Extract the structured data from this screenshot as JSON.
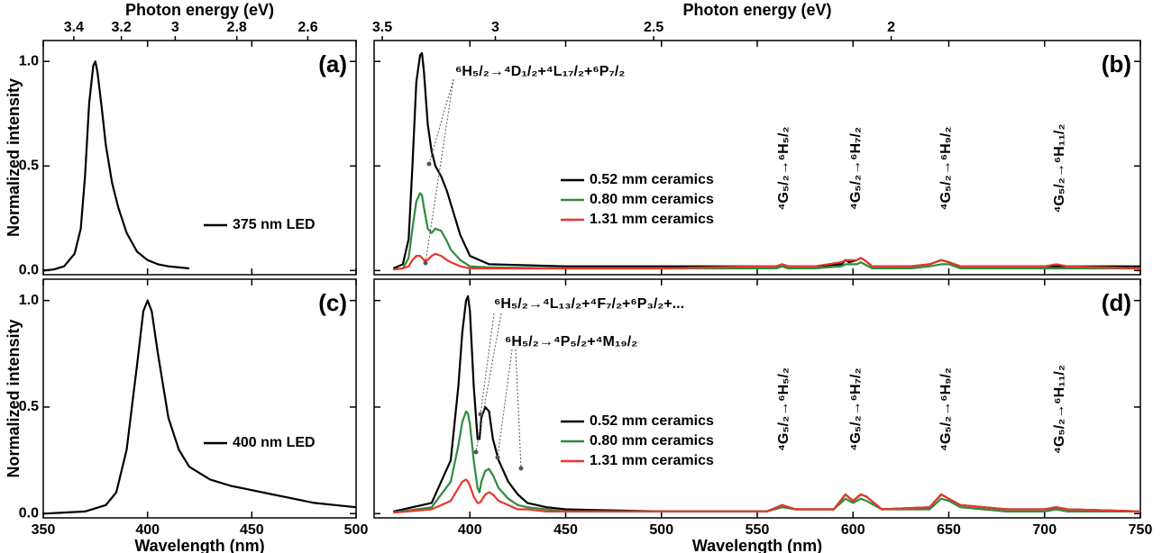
{
  "chart_data": [
    {
      "type": "line",
      "label": "(a)",
      "x2label": "Photon energy (eV)",
      "ylabel": "Normalized intensity",
      "xlim": [
        350,
        500
      ],
      "xticks": [
        350,
        400,
        450,
        500
      ],
      "x2ticks": [
        3.4,
        3.2,
        3,
        2.8,
        2.6
      ],
      "ylim": [
        -0.02,
        1.1
      ],
      "yticks": [
        {
          "value": 0,
          "label": "0.0"
        },
        {
          "value": 0.5,
          "label": "0.5"
        },
        {
          "value": 1,
          "label": "1.0"
        }
      ],
      "x": [
        350,
        355,
        360,
        365,
        368,
        370,
        372,
        374,
        375,
        376,
        378,
        380,
        383,
        386,
        390,
        395,
        400,
        405,
        410,
        415,
        420
      ],
      "series": [
        {
          "name": "375 nm LED",
          "color": "#000000",
          "values": [
            0.0,
            0.005,
            0.02,
            0.08,
            0.2,
            0.45,
            0.8,
            0.98,
            1.0,
            0.95,
            0.78,
            0.6,
            0.42,
            0.3,
            0.18,
            0.09,
            0.05,
            0.03,
            0.02,
            0.015,
            0.01
          ]
        }
      ]
    },
    {
      "type": "line",
      "label": "(b)",
      "x2label": "Photon energy (eV)",
      "xlim": [
        350,
        750
      ],
      "xticks": [
        400,
        450,
        500,
        550,
        600,
        650,
        700,
        750
      ],
      "x2ticks": [
        3.5,
        3,
        2.5,
        2
      ],
      "ylim": [
        -0.02,
        1.1
      ],
      "yticks": [
        0,
        0.5,
        1
      ],
      "annotations": [
        "⁶H₅/₂→⁴D₁/₂+⁴L₁₇/₂+⁶P₇/₂"
      ],
      "transitions": [
        "⁴G₅/₂→⁶H₅/₂",
        "⁴G₅/₂→⁶H₇/₂",
        "⁴G₅/₂→⁶H₉/₂",
        "⁴G₅/₂→⁶H₁₁/₂"
      ],
      "x": [
        360,
        365,
        368,
        370,
        372,
        374,
        375,
        376,
        378,
        380,
        382,
        385,
        388,
        390,
        395,
        400,
        410,
        450,
        500,
        550,
        560,
        563,
        566,
        580,
        594,
        596,
        598,
        602,
        604,
        606,
        610,
        630,
        640,
        646,
        650,
        656,
        670,
        700,
        706,
        712,
        750
      ],
      "series": [
        {
          "name": "0.52 mm ceramics",
          "color": "#000000",
          "values": [
            0.01,
            0.03,
            0.15,
            0.5,
            0.9,
            1.03,
            1.04,
            0.95,
            0.7,
            0.57,
            0.5,
            0.45,
            0.38,
            0.32,
            0.17,
            0.07,
            0.03,
            0.02,
            0.02,
            0.02,
            0.02,
            0.03,
            0.02,
            0.02,
            0.03,
            0.05,
            0.04,
            0.05,
            0.06,
            0.05,
            0.02,
            0.02,
            0.03,
            0.05,
            0.04,
            0.02,
            0.02,
            0.02,
            0.02,
            0.02,
            0.02
          ]
        },
        {
          "name": "0.80 mm ceramics",
          "color": "#2e8b3e",
          "values": [
            0.005,
            0.01,
            0.06,
            0.2,
            0.33,
            0.37,
            0.36,
            0.3,
            0.2,
            0.18,
            0.2,
            0.19,
            0.14,
            0.1,
            0.05,
            0.02,
            0.015,
            0.01,
            0.01,
            0.01,
            0.01,
            0.02,
            0.01,
            0.01,
            0.02,
            0.03,
            0.03,
            0.03,
            0.04,
            0.03,
            0.01,
            0.01,
            0.02,
            0.03,
            0.03,
            0.01,
            0.01,
            0.01,
            0.01,
            0.01,
            0.01
          ]
        },
        {
          "name": "1.31 mm ceramics",
          "color": "#e8372a",
          "values": [
            0.005,
            0.01,
            0.02,
            0.05,
            0.07,
            0.07,
            0.06,
            0.05,
            0.05,
            0.07,
            0.08,
            0.07,
            0.05,
            0.04,
            0.02,
            0.01,
            0.01,
            0.01,
            0.01,
            0.02,
            0.02,
            0.03,
            0.02,
            0.02,
            0.04,
            0.05,
            0.05,
            0.05,
            0.06,
            0.05,
            0.02,
            0.02,
            0.03,
            0.05,
            0.04,
            0.02,
            0.02,
            0.02,
            0.03,
            0.02,
            0.01
          ]
        }
      ]
    },
    {
      "type": "line",
      "label": "(c)",
      "xlabel": "Wavelength (nm)",
      "ylabel": "Normalized intensity",
      "xlim": [
        350,
        500
      ],
      "xticks": [
        350,
        400,
        450,
        500
      ],
      "x2ticks": [
        3.4,
        3.2,
        3,
        2.8,
        2.6
      ],
      "ylim": [
        -0.02,
        1.1
      ],
      "yticks": [
        {
          "value": 0,
          "label": "0.0"
        },
        {
          "value": 0.5,
          "label": "0.5"
        },
        {
          "value": 1,
          "label": "1.0"
        }
      ],
      "x": [
        350,
        360,
        370,
        380,
        385,
        390,
        395,
        398,
        400,
        402,
        405,
        410,
        415,
        420,
        430,
        440,
        450,
        460,
        470,
        480,
        490,
        500
      ],
      "series": [
        {
          "name": "400 nm LED",
          "color": "#000000",
          "values": [
            0,
            0.005,
            0.01,
            0.04,
            0.1,
            0.3,
            0.7,
            0.95,
            1.0,
            0.95,
            0.75,
            0.45,
            0.3,
            0.22,
            0.16,
            0.13,
            0.11,
            0.09,
            0.07,
            0.05,
            0.04,
            0.03
          ]
        }
      ]
    },
    {
      "type": "line",
      "label": "(d)",
      "xlabel": "Wavelength (nm)",
      "xlim": [
        350,
        750
      ],
      "xticks": [
        400,
        450,
        500,
        550,
        600,
        650,
        700,
        750
      ],
      "x2ticks": [
        3.5,
        3,
        2.5,
        2
      ],
      "ylim": [
        -0.02,
        1.1
      ],
      "yticks": [
        0,
        0.5,
        1
      ],
      "annotations": [
        "⁶H₅/₂→⁴L₁₃/₂+⁴F₇/₂+⁶P₃/₂+...",
        "⁶H₅/₂→⁴P₅/₂+⁴M₁₉/₂"
      ],
      "transitions": [
        "⁴G₅/₂→⁶H₅/₂",
        "⁴G₅/₂→⁶H₇/₂",
        "⁴G₅/₂→⁶H₉/₂",
        "⁴G₅/₂→⁶H₁₁/₂"
      ],
      "x": [
        360,
        380,
        390,
        394,
        396,
        398,
        399,
        400,
        402,
        404,
        405,
        406,
        408,
        410,
        412,
        415,
        420,
        425,
        430,
        440,
        450,
        500,
        555,
        563,
        570,
        590,
        596,
        600,
        604,
        607,
        615,
        640,
        646,
        650,
        656,
        680,
        700,
        706,
        712,
        750
      ],
      "series": [
        {
          "name": "0.52 mm ceramics",
          "color": "#000000",
          "values": [
            0.01,
            0.05,
            0.25,
            0.6,
            0.85,
            1.0,
            1.02,
            0.95,
            0.6,
            0.35,
            0.35,
            0.45,
            0.5,
            0.48,
            0.35,
            0.25,
            0.15,
            0.09,
            0.05,
            0.03,
            0.02,
            0.01,
            0.01,
            0.04,
            0.02,
            0.02,
            0.09,
            0.06,
            0.09,
            0.08,
            0.02,
            0.03,
            0.09,
            0.07,
            0.04,
            0.02,
            0.02,
            0.03,
            0.02,
            0.01
          ]
        },
        {
          "name": "0.80 mm ceramics",
          "color": "#2e8b3e",
          "values": [
            0.005,
            0.03,
            0.15,
            0.32,
            0.43,
            0.48,
            0.47,
            0.42,
            0.25,
            0.12,
            0.1,
            0.15,
            0.2,
            0.21,
            0.18,
            0.12,
            0.07,
            0.04,
            0.03,
            0.02,
            0.01,
            0.01,
            0.01,
            0.03,
            0.02,
            0.02,
            0.07,
            0.05,
            0.07,
            0.06,
            0.02,
            0.02,
            0.07,
            0.06,
            0.03,
            0.01,
            0.01,
            0.02,
            0.01,
            0.01
          ]
        },
        {
          "name": "1.31 mm ceramics",
          "color": "#e8372a",
          "values": [
            0.005,
            0.02,
            0.06,
            0.12,
            0.15,
            0.16,
            0.15,
            0.13,
            0.08,
            0.05,
            0.05,
            0.06,
            0.09,
            0.1,
            0.09,
            0.06,
            0.04,
            0.02,
            0.02,
            0.01,
            0.01,
            0.01,
            0.01,
            0.04,
            0.02,
            0.02,
            0.09,
            0.06,
            0.09,
            0.08,
            0.02,
            0.03,
            0.09,
            0.07,
            0.04,
            0.02,
            0.02,
            0.03,
            0.02,
            0.01
          ]
        }
      ]
    }
  ]
}
